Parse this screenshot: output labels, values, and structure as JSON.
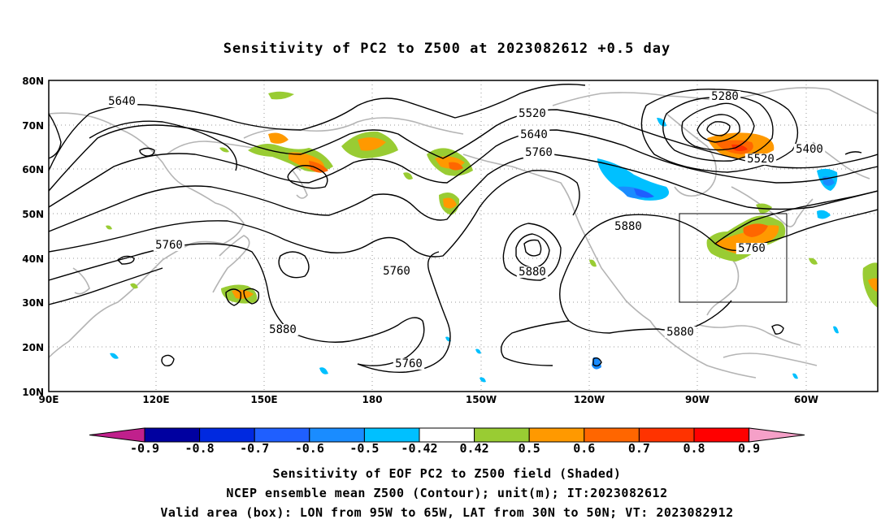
{
  "title": "Sensitivity of PC2 to Z500 at 2023082612 +0.5 day",
  "axes": {
    "lon_ticks": [
      "90E",
      "120E",
      "150E",
      "180",
      "150W",
      "120W",
      "90W",
      "60W"
    ],
    "lat_ticks": [
      "80N",
      "70N",
      "60N",
      "50N",
      "40N",
      "30N",
      "20N",
      "10N"
    ],
    "lon_range": [
      90,
      322
    ],
    "lat_range": [
      10,
      80
    ],
    "grid": "dotted"
  },
  "contour_labels": [
    "5640",
    "5520",
    "5640",
    "5760",
    "5280",
    "5400",
    "5520",
    "5880",
    "5760",
    "5760",
    "5760",
    "5880",
    "5880",
    "5880",
    "5760"
  ],
  "valid_box": {
    "lon_min": 265,
    "lon_max": 295,
    "lat_min": 30,
    "lat_max": 50
  },
  "colorbar": {
    "labels": [
      "-0.9",
      "-0.8",
      "-0.7",
      "-0.6",
      "-0.5",
      "-0.42",
      "0.42",
      "0.5",
      "0.6",
      "0.7",
      "0.8",
      "0.9"
    ],
    "colors": [
      "#0000a0",
      "#0029e0",
      "#1f5fff",
      "#1a8cff",
      "#00c0ff",
      "#ffffff",
      "#99cc33",
      "#ff9900",
      "#ff6600",
      "#ff3300",
      "#ff0000"
    ],
    "low_extend_color": "#c0208c",
    "high_extend_color": "#f5a0c8"
  },
  "captions": [
    "Sensitivity of EOF PC2 to Z500 field (Shaded)",
    "NCEP ensemble mean Z500 (Contour); unit(m); IT:2023082612",
    "Valid area (box): LON from 95W to 65W, LAT from 30N to 50N; VT: 2023082912"
  ]
}
